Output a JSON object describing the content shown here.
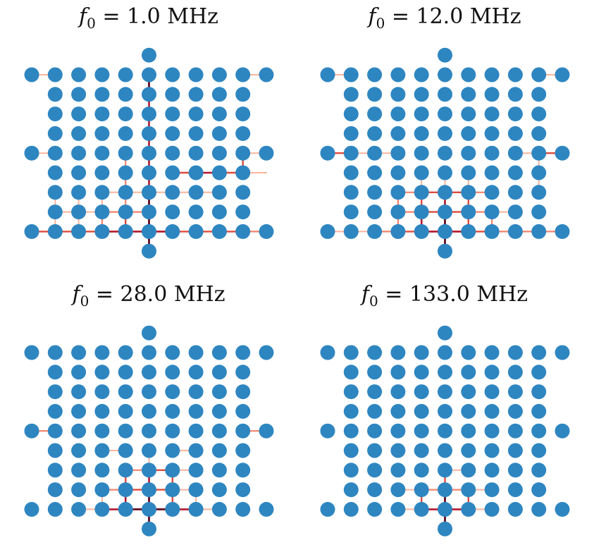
{
  "figure": {
    "grid": {
      "cols": 10,
      "rows": 8
    },
    "node_color": "#2e86c1",
    "edge_colormap": [
      "#fde0d2",
      "#fbb49a",
      "#f4826a",
      "#de4a3c",
      "#b3172a",
      "#670a20"
    ]
  },
  "panels": [
    {
      "title": {
        "symbol": "f",
        "subscript": "0",
        "rest": " = 1.0 MHz"
      },
      "edges": [
        "v|5|0|5",
        "v|5|1|4",
        "v|5|2|4",
        "v|5|3|4",
        "v|5|4|4",
        "v|5|5|4",
        "v|5|6|5",
        "v|5|7|5",
        "v|5|8|5",
        "h|0|8|3",
        "h|1|8|3",
        "h|2|8|3",
        "h|3|8|4",
        "h|4|8|4",
        "h|5|8|4",
        "h|6|8|3",
        "h|7|8|3",
        "h|8|8|3",
        "h|9|8|2",
        "h|6|5|3",
        "h|7|5|4",
        "h|8|5|3",
        "h|9|5|1",
        "v|9|4|3",
        "h|0|4|1",
        "h|9|4|1",
        "h|0|0|1",
        "h|9|0|1",
        "v|4|4|2",
        "v|4|5|2",
        "v|4|6|2",
        "v|4|7|3",
        "v|3|6|1",
        "v|3|7|2",
        "v|2|6|1",
        "v|2|7|1",
        "v|1|6|1",
        "v|1|7|1",
        "h|1|7|1",
        "h|2|7|1",
        "h|3|7|2",
        "h|4|7|2",
        "h|5|6|1",
        "h|6|6|1",
        "h|7|6|1",
        "h|4|6|1",
        "h|3|6|1"
      ]
    },
    {
      "title": {
        "symbol": "f",
        "subscript": "0",
        "rest": " = 12.0 MHz"
      },
      "edges": [
        "v|5|7|5",
        "v|5|8|5",
        "v|5|6|4",
        "v|4|7|4",
        "v|6|7|3",
        "v|4|6|3",
        "v|6|6|3",
        "v|3|7|2",
        "v|7|7|2",
        "v|3|6|2",
        "h|3|6|2",
        "h|4|6|3",
        "h|5|6|3",
        "h|6|6|2",
        "h|3|7|2",
        "h|4|7|3",
        "h|5|7|3",
        "h|6|7|2",
        "h|7|7|1",
        "h|3|8|3",
        "h|4|8|4",
        "h|5|8|4",
        "h|6|8|3",
        "h|2|8|2",
        "h|7|8|2",
        "h|8|8|2",
        "h|9|8|2",
        "h|1|8|1",
        "h|0|8|1",
        "h|0|4|3",
        "h|1|4|1",
        "h|2|4|1",
        "h|9|4|3",
        "h|8|4|1",
        "v|9|4|1",
        "v|9|5|1",
        "h|0|0|1",
        "h|9|0|1",
        "v|5|5|1",
        "v|4|5|1",
        "v|6|5|1"
      ]
    },
    {
      "title": {
        "symbol": "f",
        "subscript": "0",
        "rest": " = 28.0 MHz"
      },
      "edges": [
        "v|5|7|5",
        "v|5|8|5",
        "v|5|6|4",
        "v|4|7|4",
        "v|6|7|3",
        "v|4|6|3",
        "v|6|6|3",
        "v|3|7|1",
        "v|7|7|1",
        "h|3|7|2",
        "h|4|7|3",
        "h|5|7|3",
        "h|6|7|1",
        "h|4|6|2",
        "h|5|6|3",
        "h|6|6|1",
        "h|3|8|4",
        "h|4|8|5",
        "h|5|8|5",
        "h|6|8|4",
        "h|2|8|1",
        "h|7|8|1",
        "h|0|4|2",
        "h|9|4|2",
        "v|5|5|1",
        "h|3|5|1",
        "h|6|5|1"
      ]
    },
    {
      "title": {
        "symbol": "f",
        "subscript": "0",
        "rest": " = 133.0 MHz"
      },
      "edges": [
        "v|5|7|5",
        "v|5|8|5",
        "v|5|6|3",
        "v|4|7|3",
        "v|6|7|3",
        "h|3|7|1",
        "h|4|7|2",
        "h|5|7|2",
        "h|6|7|1",
        "h|4|8|4",
        "h|5|8|4",
        "h|3|8|1",
        "h|6|8|1",
        "h|5|6|1"
      ]
    }
  ]
}
